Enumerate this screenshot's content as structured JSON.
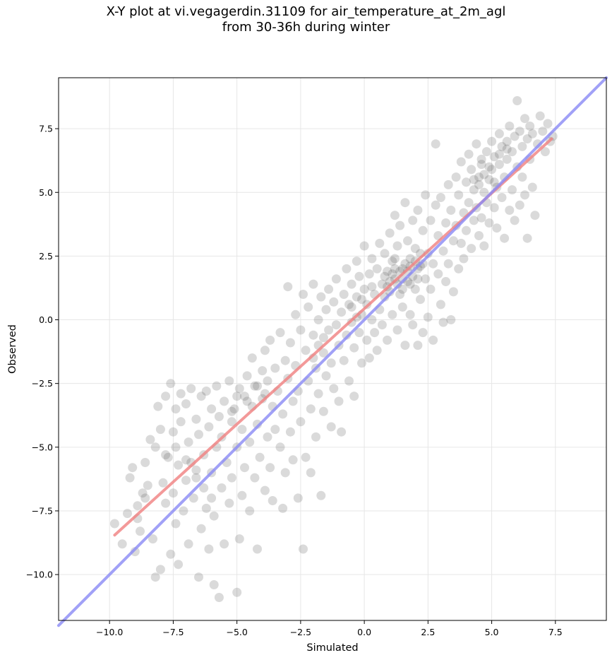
{
  "chart_data": {
    "type": "scatter",
    "title_line1": "X-Y plot at vi.vegagerdin.31109 for air_temperature_at_2m_agl",
    "title_line2": "from 30-36h during winter",
    "xlabel": "Simulated",
    "ylabel": "Observed",
    "xlim": [
      -12.0,
      9.5
    ],
    "ylim": [
      -11.8,
      9.5
    ],
    "xticks": [
      -10.0,
      -7.5,
      -5.0,
      -2.5,
      0.0,
      2.5,
      5.0,
      7.5
    ],
    "yticks": [
      -10.0,
      -7.5,
      -5.0,
      -2.5,
      0.0,
      2.5,
      5.0,
      7.5
    ],
    "xtick_labels": [
      "−10.0",
      "−7.5",
      "−5.0",
      "−2.5",
      "0.0",
      "2.5",
      "5.0",
      "7.5"
    ],
    "ytick_labels": [
      "−10.0",
      "−7.5",
      "−5.0",
      "−2.5",
      "0.0",
      "2.5",
      "5.0",
      "7.5"
    ],
    "grid": true,
    "point_color": "#555555",
    "points": [
      [
        -9.8,
        -8.0
      ],
      [
        -9.5,
        -8.8
      ],
      [
        -9.3,
        -7.6
      ],
      [
        -9.2,
        -6.2
      ],
      [
        -9.1,
        -5.8
      ],
      [
        -9.0,
        -9.1
      ],
      [
        -8.9,
        -7.8
      ],
      [
        -8.8,
        -8.3
      ],
      [
        -8.7,
        -6.8
      ],
      [
        -8.6,
        -5.6
      ],
      [
        -8.5,
        -6.5
      ],
      [
        -8.4,
        -4.7
      ],
      [
        -8.3,
        -8.6
      ],
      [
        -8.2,
        -10.1
      ],
      [
        -8.2,
        -5.0
      ],
      [
        -8.1,
        -3.4
      ],
      [
        -8.0,
        -9.8
      ],
      [
        -8.0,
        -4.3
      ],
      [
        -7.9,
        -6.4
      ],
      [
        -7.8,
        -3.0
      ],
      [
        -7.8,
        -7.2
      ],
      [
        -7.7,
        -5.4
      ],
      [
        -7.6,
        -9.2
      ],
      [
        -7.6,
        -2.5
      ],
      [
        -7.5,
        -4.4
      ],
      [
        -7.5,
        -6.8
      ],
      [
        -7.4,
        -3.5
      ],
      [
        -7.4,
        -8.0
      ],
      [
        -7.3,
        -9.6
      ],
      [
        -7.3,
        -5.7
      ],
      [
        -7.2,
        -4.0
      ],
      [
        -7.2,
        -2.9
      ],
      [
        -7.1,
        -7.5
      ],
      [
        -7.0,
        -6.3
      ],
      [
        -7.0,
        -3.3
      ],
      [
        -6.9,
        -8.8
      ],
      [
        -6.9,
        -4.8
      ],
      [
        -6.8,
        -5.6
      ],
      [
        -6.8,
        -2.7
      ],
      [
        -6.7,
        -7.0
      ],
      [
        -6.6,
        -3.9
      ],
      [
        -6.6,
        -6.2
      ],
      [
        -6.5,
        -10.1
      ],
      [
        -6.5,
        -4.5
      ],
      [
        -6.4,
        -8.2
      ],
      [
        -6.4,
        -3.0
      ],
      [
        -6.3,
        -5.3
      ],
      [
        -6.2,
        -7.4
      ],
      [
        -6.2,
        -2.8
      ],
      [
        -6.1,
        -9.0
      ],
      [
        -6.1,
        -4.2
      ],
      [
        -6.0,
        -6.0
      ],
      [
        -6.0,
        -3.5
      ],
      [
        -5.9,
        -10.4
      ],
      [
        -5.9,
        -7.7
      ],
      [
        -5.8,
        -5.0
      ],
      [
        -5.8,
        -2.6
      ],
      [
        -5.7,
        -10.9
      ],
      [
        -5.7,
        -3.8
      ],
      [
        -5.6,
        -6.6
      ],
      [
        -5.6,
        -4.6
      ],
      [
        -5.5,
        -8.8
      ],
      [
        -5.5,
        -3.2
      ],
      [
        -5.4,
        -5.6
      ],
      [
        -5.3,
        -7.2
      ],
      [
        -5.3,
        -2.4
      ],
      [
        -5.2,
        -4.0
      ],
      [
        -5.2,
        -6.2
      ],
      [
        -5.1,
        -3.5
      ],
      [
        -5.0,
        -10.7
      ],
      [
        -5.0,
        -5.0
      ],
      [
        -4.9,
        -8.6
      ],
      [
        -4.9,
        -2.7
      ],
      [
        -4.8,
        -6.9
      ],
      [
        -4.8,
        -4.3
      ],
      [
        -4.7,
        -3.0
      ],
      [
        -4.7,
        -5.8
      ],
      [
        -4.6,
        -2.2
      ],
      [
        -4.5,
        -7.5
      ],
      [
        -4.5,
        -4.8
      ],
      [
        -4.4,
        -3.4
      ],
      [
        -4.4,
        -1.5
      ],
      [
        -4.3,
        -6.2
      ],
      [
        -4.3,
        -2.6
      ],
      [
        -4.2,
        -9.0
      ],
      [
        -4.2,
        -4.1
      ],
      [
        -4.1,
        -5.4
      ],
      [
        -4.0,
        -2.0
      ],
      [
        -4.0,
        -3.1
      ],
      [
        -3.9,
        -6.7
      ],
      [
        -3.9,
        -1.2
      ],
      [
        -3.8,
        -4.6
      ],
      [
        -3.8,
        -2.4
      ],
      [
        -3.7,
        -5.8
      ],
      [
        -3.7,
        -0.8
      ],
      [
        -3.6,
        -3.4
      ],
      [
        -3.6,
        -7.1
      ],
      [
        -3.5,
        -1.9
      ],
      [
        -3.5,
        -4.3
      ],
      [
        -3.4,
        -2.8
      ],
      [
        -3.3,
        -5.0
      ],
      [
        -3.3,
        -0.5
      ],
      [
        -3.2,
        -3.7
      ],
      [
        -3.2,
        -7.4
      ],
      [
        -3.1,
        -1.6
      ],
      [
        -3.1,
        -6.0
      ],
      [
        -3.0,
        1.3
      ],
      [
        -3.0,
        -2.3
      ],
      [
        -2.9,
        -4.4
      ],
      [
        -2.9,
        -0.9
      ],
      [
        -2.8,
        -3.2
      ],
      [
        -2.8,
        -5.5
      ],
      [
        -2.7,
        0.2
      ],
      [
        -2.7,
        -1.8
      ],
      [
        -2.6,
        -7.0
      ],
      [
        -2.6,
        -2.8
      ],
      [
        -2.5,
        -0.4
      ],
      [
        -2.5,
        -4.0
      ],
      [
        -2.4,
        1.0
      ],
      [
        -2.4,
        -9.0
      ],
      [
        -2.3,
        -1.2
      ],
      [
        -2.3,
        -5.4
      ],
      [
        -2.2,
        -2.4
      ],
      [
        -2.2,
        0.5
      ],
      [
        -2.1,
        -3.5
      ],
      [
        -2.1,
        -6.0
      ],
      [
        -2.0,
        -0.6
      ],
      [
        -2.0,
        1.4
      ],
      [
        -1.9,
        -1.9
      ],
      [
        -1.9,
        -4.6
      ],
      [
        -1.8,
        0.0
      ],
      [
        -1.8,
        -2.9
      ],
      [
        -1.7,
        0.9
      ],
      [
        -1.7,
        -6.9
      ],
      [
        -1.6,
        -1.3
      ],
      [
        -1.6,
        -3.6
      ],
      [
        -1.5,
        0.4
      ],
      [
        -1.5,
        -2.2
      ],
      [
        -1.4,
        -0.4
      ],
      [
        -1.4,
        1.2
      ],
      [
        -1.3,
        -1.7
      ],
      [
        -1.3,
        -4.2
      ],
      [
        -1.2,
        0.7
      ],
      [
        -1.2,
        -2.7
      ],
      [
        -1.1,
        -0.2
      ],
      [
        -1.1,
        1.6
      ],
      [
        -1.0,
        -1.0
      ],
      [
        -1.0,
        -3.2
      ],
      [
        -0.9,
        0.3
      ],
      [
        -0.9,
        -4.4
      ],
      [
        -0.8,
        1.0
      ],
      [
        -0.8,
        -1.6
      ],
      [
        -0.7,
        -0.6
      ],
      [
        -0.7,
        2.0
      ],
      [
        -0.6,
        0.6
      ],
      [
        -0.6,
        -2.4
      ],
      [
        -0.5,
        -0.1
      ],
      [
        -0.5,
        1.4
      ],
      [
        -0.4,
        -1.1
      ],
      [
        -0.4,
        -3.0
      ],
      [
        -0.3,
        0.9
      ],
      [
        -0.3,
        2.3
      ],
      [
        -0.2,
        -0.5
      ],
      [
        -0.2,
        1.7
      ],
      [
        -0.1,
        0.2
      ],
      [
        -0.1,
        -1.7
      ],
      [
        0.0,
        1.2
      ],
      [
        0.0,
        2.9
      ],
      [
        0.1,
        -0.8
      ],
      [
        0.1,
        0.6
      ],
      [
        0.2,
        1.8
      ],
      [
        0.2,
        -1.5
      ],
      [
        0.3,
        0.0
      ],
      [
        0.3,
        2.4
      ],
      [
        0.4,
        1.0
      ],
      [
        0.4,
        -0.5
      ],
      [
        0.5,
        2.0
      ],
      [
        0.5,
        -1.2
      ],
      [
        0.6,
        0.4
      ],
      [
        0.6,
        3.0
      ],
      [
        0.7,
        1.4
      ],
      [
        0.7,
        -0.2
      ],
      [
        0.8,
        2.6
      ],
      [
        0.8,
        0.9
      ],
      [
        0.9,
        1.9
      ],
      [
        0.9,
        -0.8
      ],
      [
        1.0,
        3.4
      ],
      [
        1.0,
        1.1
      ],
      [
        1.1,
        0.2
      ],
      [
        1.1,
        2.3
      ],
      [
        1.2,
        4.1
      ],
      [
        1.2,
        1.6
      ],
      [
        1.3,
        -0.4
      ],
      [
        1.3,
        2.9
      ],
      [
        1.4,
        1.0
      ],
      [
        1.4,
        3.7
      ],
      [
        1.5,
        0.5
      ],
      [
        1.5,
        2.0
      ],
      [
        1.6,
        -1.0
      ],
      [
        1.6,
        4.6
      ],
      [
        1.7,
        1.5
      ],
      [
        1.7,
        3.1
      ],
      [
        1.8,
        0.2
      ],
      [
        1.8,
        2.4
      ],
      [
        1.9,
        -0.2
      ],
      [
        1.9,
        3.9
      ],
      [
        2.0,
        1.2
      ],
      [
        2.0,
        2.8
      ],
      [
        2.1,
        -1.0
      ],
      [
        2.1,
        4.3
      ],
      [
        2.2,
        0.8
      ],
      [
        2.2,
        2.1
      ],
      [
        2.3,
        3.5
      ],
      [
        2.3,
        -0.5
      ],
      [
        2.4,
        1.6
      ],
      [
        2.4,
        4.9
      ],
      [
        2.5,
        2.6
      ],
      [
        2.5,
        0.1
      ],
      [
        2.6,
        3.9
      ],
      [
        2.6,
        1.2
      ],
      [
        2.7,
        2.2
      ],
      [
        2.7,
        -0.8
      ],
      [
        2.8,
        4.5
      ],
      [
        2.8,
        6.9
      ],
      [
        2.9,
        1.8
      ],
      [
        2.9,
        3.3
      ],
      [
        3.0,
        0.6
      ],
      [
        3.0,
        4.8
      ],
      [
        3.1,
        2.7
      ],
      [
        3.1,
        -0.1
      ],
      [
        3.2,
        3.8
      ],
      [
        3.2,
        1.5
      ],
      [
        3.3,
        5.3
      ],
      [
        3.3,
        2.2
      ],
      [
        3.4,
        0.0
      ],
      [
        3.4,
        4.3
      ],
      [
        3.5,
        3.1
      ],
      [
        3.5,
        1.1
      ],
      [
        3.6,
        5.6
      ],
      [
        3.6,
        3.7
      ],
      [
        3.7,
        2.0
      ],
      [
        3.7,
        4.9
      ],
      [
        3.8,
        6.2
      ],
      [
        3.8,
        3.0
      ],
      [
        3.9,
        4.2
      ],
      [
        3.9,
        2.4
      ],
      [
        4.0,
        5.4
      ],
      [
        4.0,
        3.5
      ],
      [
        4.1,
        6.5
      ],
      [
        4.1,
        4.6
      ],
      [
        4.2,
        2.8
      ],
      [
        4.2,
        5.9
      ],
      [
        4.3,
        3.9
      ],
      [
        4.3,
        5.1
      ],
      [
        4.4,
        6.9
      ],
      [
        4.4,
        4.4
      ],
      [
        4.5,
        3.3
      ],
      [
        4.5,
        5.6
      ],
      [
        4.6,
        6.3
      ],
      [
        4.6,
        4.0
      ],
      [
        4.7,
        5.0
      ],
      [
        4.7,
        2.9
      ],
      [
        4.8,
        6.6
      ],
      [
        4.8,
        4.6
      ],
      [
        4.9,
        5.5
      ],
      [
        4.9,
        3.8
      ],
      [
        5.0,
        7.0
      ],
      [
        5.0,
        5.9
      ],
      [
        5.1,
        4.4
      ],
      [
        5.1,
        6.4
      ],
      [
        5.2,
        5.2
      ],
      [
        5.2,
        3.6
      ],
      [
        5.3,
        7.3
      ],
      [
        5.3,
        6.1
      ],
      [
        5.4,
        4.8
      ],
      [
        5.4,
        6.8
      ],
      [
        5.5,
        5.6
      ],
      [
        5.5,
        3.2
      ],
      [
        5.6,
        7.0
      ],
      [
        5.6,
        6.3
      ],
      [
        5.7,
        4.3
      ],
      [
        5.7,
        7.6
      ],
      [
        5.8,
        6.6
      ],
      [
        5.8,
        5.1
      ],
      [
        5.9,
        7.2
      ],
      [
        5.9,
        3.9
      ],
      [
        6.0,
        6.0
      ],
      [
        6.0,
        8.6
      ],
      [
        6.1,
        7.4
      ],
      [
        6.1,
        4.5
      ],
      [
        6.2,
        6.8
      ],
      [
        6.2,
        5.6
      ],
      [
        6.3,
        7.9
      ],
      [
        6.3,
        4.9
      ],
      [
        6.4,
        7.1
      ],
      [
        6.4,
        3.2
      ],
      [
        6.5,
        6.3
      ],
      [
        6.5,
        7.6
      ],
      [
        6.6,
        5.2
      ],
      [
        6.6,
        7.3
      ],
      [
        6.7,
        4.1
      ],
      [
        6.8,
        6.9
      ],
      [
        6.9,
        8.0
      ],
      [
        7.0,
        7.4
      ],
      [
        7.1,
        6.6
      ],
      [
        7.2,
        7.7
      ],
      [
        7.3,
        7.0
      ],
      [
        7.4,
        7.2
      ],
      [
        1.0,
        1.5
      ],
      [
        1.1,
        1.8
      ],
      [
        1.2,
        2.0
      ],
      [
        1.3,
        1.4
      ],
      [
        1.4,
        1.9
      ],
      [
        1.5,
        1.6
      ],
      [
        1.6,
        2.2
      ],
      [
        1.7,
        1.9
      ],
      [
        1.8,
        2.1
      ],
      [
        1.9,
        1.7
      ],
      [
        2.0,
        2.3
      ],
      [
        2.1,
        2.0
      ],
      [
        2.2,
        2.6
      ],
      [
        2.3,
        2.2
      ],
      [
        0.9,
        1.3
      ],
      [
        0.8,
        1.7
      ],
      [
        1.5,
        1.2
      ],
      [
        1.8,
        1.4
      ],
      [
        2.1,
        1.6
      ],
      [
        1.2,
        2.4
      ],
      [
        -0.5,
        0.5
      ],
      [
        -0.3,
        0.1
      ],
      [
        -0.1,
        0.8
      ],
      [
        0.3,
        1.3
      ],
      [
        -2.0,
        -1.5
      ],
      [
        -1.8,
        -1.0
      ],
      [
        -1.6,
        -0.7
      ],
      [
        -4.2,
        -2.6
      ],
      [
        -3.9,
        -2.9
      ],
      [
        -4.6,
        -3.2
      ],
      [
        -5.2,
        -3.6
      ],
      [
        -5.0,
        -3.0
      ],
      [
        4.5,
        5.3
      ],
      [
        4.7,
        5.7
      ],
      [
        4.9,
        6.0
      ],
      [
        5.1,
        5.4
      ],
      [
        4.3,
        5.5
      ],
      [
        4.6,
        6.1
      ],
      [
        5.3,
        6.5
      ],
      [
        5.6,
        6.7
      ],
      [
        -7.8,
        -5.3
      ],
      [
        -7.4,
        -5.0
      ],
      [
        -7.0,
        -5.5
      ],
      [
        -6.6,
        -5.9
      ],
      [
        -8.6,
        -7.0
      ],
      [
        -8.9,
        -7.3
      ],
      [
        -6.3,
        -6.6
      ],
      [
        -6.0,
        -7.0
      ]
    ],
    "series": [
      {
        "type": "regression",
        "color": "#f08080",
        "x": [
          -9.8,
          7.35
        ],
        "y": [
          -8.45,
          7.1
        ]
      },
      {
        "type": "identity",
        "color": "#8a8af5",
        "x": [
          -12.0,
          9.5
        ],
        "y": [
          -12.0,
          9.5
        ]
      }
    ]
  }
}
